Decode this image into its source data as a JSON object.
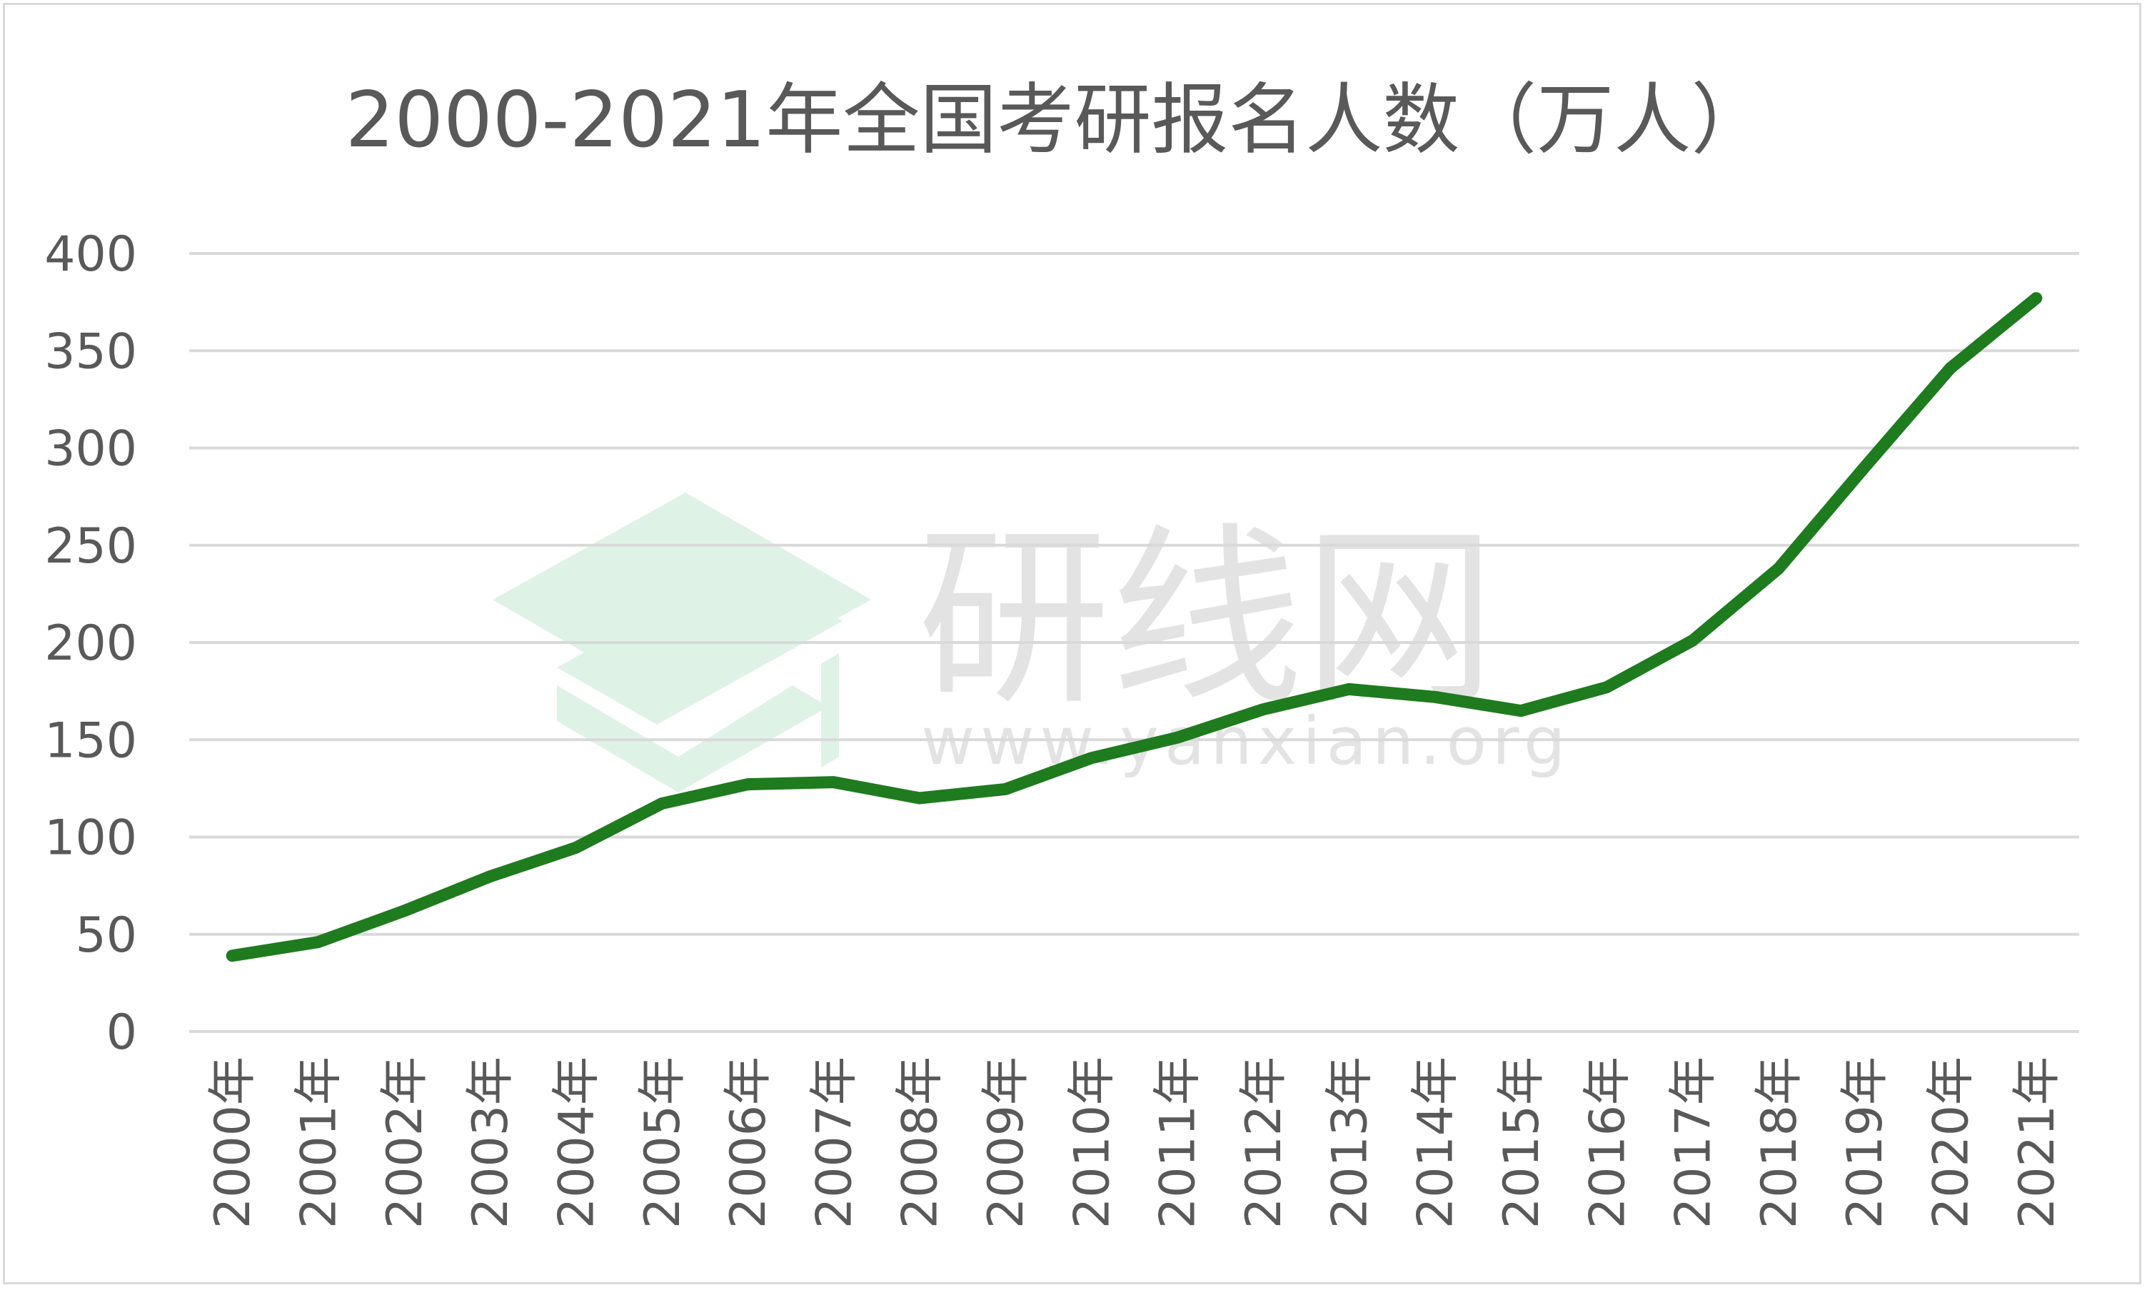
{
  "chart_data": {
    "type": "line",
    "title": "2000-2021年全国考研报名人数（万人）",
    "categories": [
      "2000年",
      "2001年",
      "2002年",
      "2003年",
      "2004年",
      "2005年",
      "2006年",
      "2007年",
      "2008年",
      "2009年",
      "2010年",
      "2011年",
      "2012年",
      "2013年",
      "2014年",
      "2015年",
      "2016年",
      "2017年",
      "2018年",
      "2019年",
      "2020年",
      "2021年"
    ],
    "series": [
      {
        "values": [
          39,
          46,
          62,
          79.7,
          94.5,
          117.2,
          127.1,
          128.2,
          120,
          124.6,
          140.6,
          151.1,
          165.6,
          176,
          172,
          164.9,
          177,
          201,
          238,
          290,
          341,
          377
        ],
        "color": "#1e7b1e"
      }
    ],
    "ylim": [
      0,
      400
    ],
    "yticks": [
      0,
      50,
      100,
      150,
      200,
      250,
      300,
      350,
      400
    ],
    "grid": true,
    "legend": "none"
  },
  "watermark": {
    "brand": "研线网",
    "url": "www.yanxian.org",
    "logo_color": "#dff2e6"
  }
}
